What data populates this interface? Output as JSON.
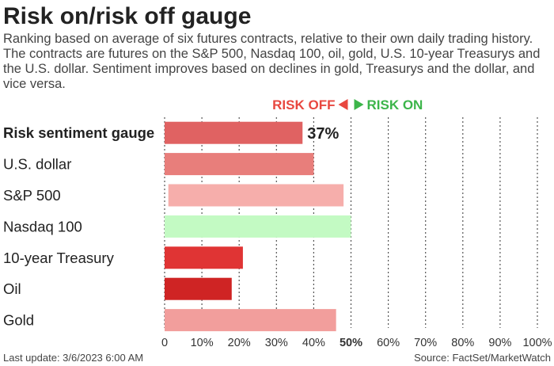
{
  "header": {
    "title": "Risk on/risk off gauge",
    "subtitle": "Ranking based on average of six futures contracts, relative to their own daily trading history. The contracts are futures on the S&P 500, Nasdaq 100, oil, gold, U.S. 10-year Treasurys and the U.S. dollar. Sentiment improves based on declines in gold, Treasurys and the dollar, and vice versa."
  },
  "footer": {
    "last_update": "Last update: 3/6/2023 6:00 AM",
    "source": "Source: FactSet/MarketWatch"
  },
  "colors": {
    "risk_off": "#e8473f",
    "risk_on": "#3cb54a",
    "grid": "#555555"
  },
  "chart_data": {
    "type": "bar",
    "orientation": "horizontal",
    "legend": {
      "risk_off_label": "RISK OFF",
      "risk_on_label": "RISK ON"
    },
    "categories": [
      "Risk sentiment gauge",
      "U.S. dollar",
      "S&P 500",
      "Nasdaq 100",
      "10-year Treasury",
      "Oil",
      "Gold"
    ],
    "values": [
      37,
      40,
      48,
      50,
      21,
      18,
      46
    ],
    "bar_starts": [
      0,
      0,
      1,
      0,
      0,
      0,
      0
    ],
    "bar_colors": [
      "#e06262",
      "#e87e7b",
      "#f6aeab",
      "#c3fac3",
      "#e03434",
      "#cf2424",
      "#f29e9c"
    ],
    "value_labels": [
      "37%",
      "",
      "",
      "",
      "",
      "",
      ""
    ],
    "xlim": [
      0,
      100
    ],
    "x_tick_labels": [
      "0",
      "10%",
      "20%",
      "30%",
      "40%",
      "50%",
      "60%",
      "70%",
      "80%",
      "90%",
      "100%"
    ],
    "highlight_tick": "50%",
    "grid": "vertical dashed"
  }
}
